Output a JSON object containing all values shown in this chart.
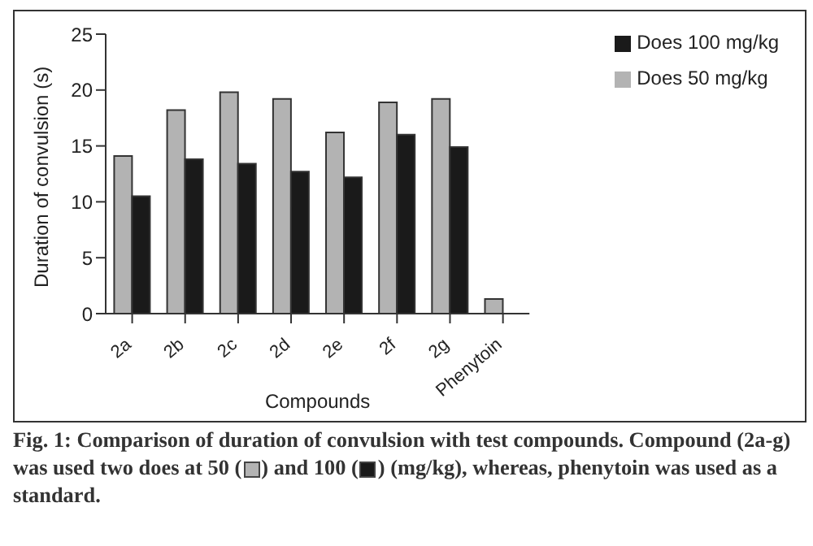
{
  "chart_data": {
    "type": "bar",
    "xlabel": "Compounds",
    "ylabel": "Duration of convulsion (s)",
    "categories": [
      "2a",
      "2b",
      "2c",
      "2d",
      "2e",
      "2f",
      "2g",
      "Phenytoin"
    ],
    "series": [
      {
        "name": "Does 50 mg/kg",
        "color": "#b3b3b3",
        "values": [
          14.1,
          18.2,
          19.8,
          19.2,
          16.2,
          18.9,
          19.2,
          1.3
        ]
      },
      {
        "name": "Does 100 mg/kg",
        "color": "#1a1a1a",
        "values": [
          10.5,
          13.8,
          13.4,
          12.7,
          12.2,
          16.0,
          14.9,
          null
        ]
      }
    ],
    "ylim": [
      0,
      25
    ],
    "yticks": [
      0,
      5,
      10,
      15,
      20,
      25
    ],
    "grid": false,
    "legend": "top right",
    "annotations": [
      "Fig. 1: Comparison of duration of convulsion with test compounds. Compound (2a-g) was used two does at 50 (",
      ") and 100 (",
      ") (mg/kg), whereas, phenytoin was used as a standard."
    ]
  }
}
